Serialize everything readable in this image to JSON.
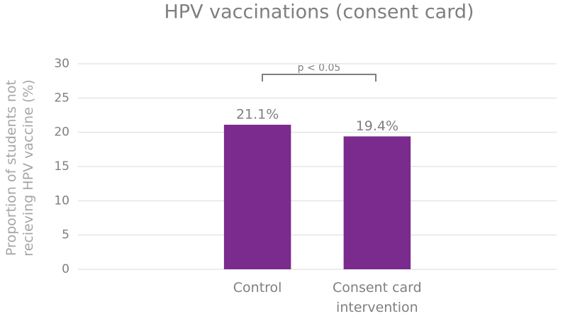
{
  "chart_data": {
    "type": "bar",
    "title": "HPV vaccinations (consent card)",
    "y_label": "Proportion of students not recieving HPV vaccine (%)",
    "categories": [
      null,
      "Control",
      "Consent card intervention",
      null
    ],
    "values": [
      null,
      21.1,
      19.4,
      null
    ],
    "value_labels": [
      null,
      "21.1%",
      "19.4%",
      null
    ],
    "color": "#7b2a8e",
    "ylim": [
      0,
      30
    ],
    "yticks": [
      0,
      5,
      10,
      15,
      20,
      25,
      30
    ],
    "grid": true,
    "annotation": "p < 0.05"
  }
}
